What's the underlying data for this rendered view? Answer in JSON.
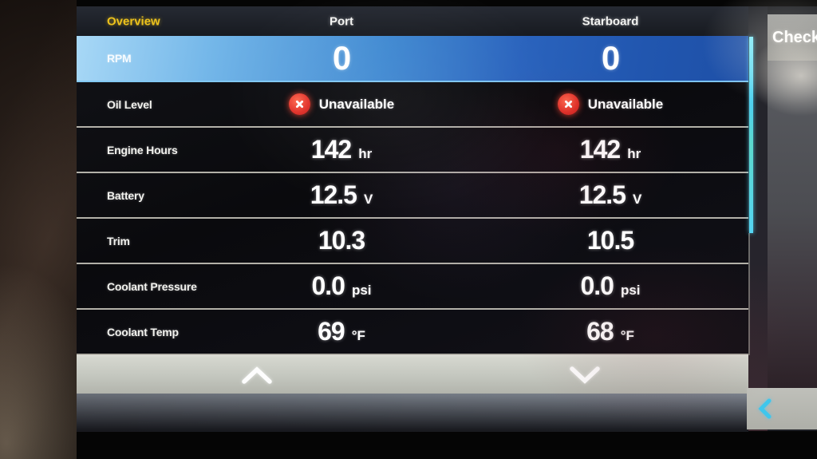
{
  "colors": {
    "accent_yellow": "#eec31c",
    "highlight_blue": "#2a63bd",
    "error_red": "#e03028",
    "scrollbar_cyan": "#55d4f2",
    "pager_gray": "#c3c6be"
  },
  "header": {
    "tab_label": "Overview",
    "port_label": "Port",
    "starboard_label": "Starboard"
  },
  "table": {
    "rows": [
      {
        "label": "RPM",
        "highlighted": true,
        "port": {
          "value": "0",
          "unit": ""
        },
        "starboard": {
          "value": "0",
          "unit": ""
        }
      },
      {
        "label": "Oil Level",
        "port": {
          "status": "Unavailable"
        },
        "starboard": {
          "status": "Unavailable"
        }
      },
      {
        "label": "Engine Hours",
        "port": {
          "value": "142",
          "unit": "hr"
        },
        "starboard": {
          "value": "142",
          "unit": "hr"
        }
      },
      {
        "label": "Battery",
        "port": {
          "value": "12.5",
          "unit": "V"
        },
        "starboard": {
          "value": "12.5",
          "unit": "V"
        }
      },
      {
        "label": "Trim",
        "port": {
          "value": "10.3",
          "unit": ""
        },
        "starboard": {
          "value": "10.5",
          "unit": ""
        }
      },
      {
        "label": "Coolant Pressure",
        "port": {
          "value": "0.0",
          "unit": "psi"
        },
        "starboard": {
          "value": "0.0",
          "unit": "psi"
        }
      },
      {
        "label": "Coolant Temp",
        "port": {
          "value": "69",
          "unit": "°F"
        },
        "starboard": {
          "value": "68",
          "unit": "°F"
        }
      }
    ]
  },
  "pager": {
    "up_icon": "chevron-up",
    "down_icon": "chevron-down"
  },
  "side_panel": {
    "title": "Check",
    "collapse_icon": "chevron-left"
  }
}
